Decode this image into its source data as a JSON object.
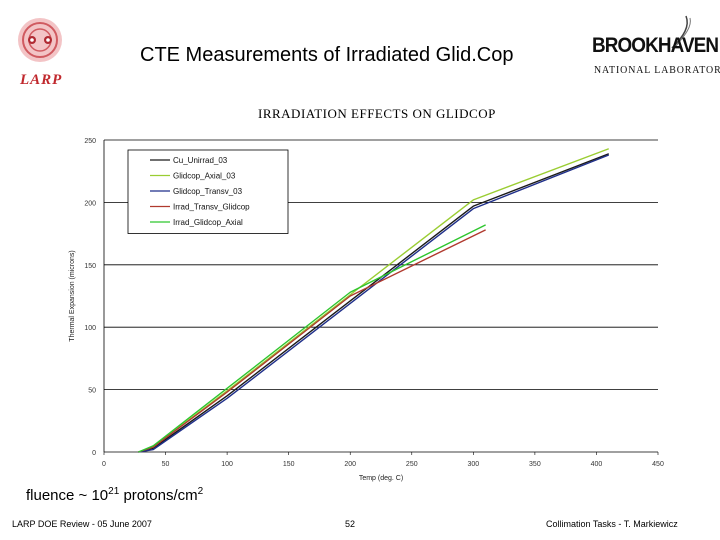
{
  "header": {
    "title": "CTE Measurements of Irradiated Glid.Cop",
    "left_logo_text": "LARP",
    "right_logo_word": "BROOKHAVEN",
    "right_logo_sub": "NATIONAL LABORATORY"
  },
  "note": {
    "text_prefix": "fluence ~ 10",
    "exponent": "21",
    "text_suffix": " protons/cm",
    "units_exponent": "2"
  },
  "footer": {
    "left": "LARP DOE Review - 05 June 2007",
    "center": "52",
    "right": "Collimation Tasks - T. Markiewicz"
  },
  "colors": {
    "larp_red": "#c0282d",
    "Cu_Unirrad_03": "#1a1a1a",
    "Glidcop_Axial_03": "#9acd32",
    "Glidcop_Transv_03": "#1f2f8a",
    "Irrad_Transv_Glidcop": "#b03a2e",
    "Irrad_Glidcop_Axial": "#2ec62e"
  },
  "chart_data": {
    "type": "line",
    "title": "IRRADIATION EFFECTS ON GLIDCOP",
    "xlabel": "Temp (deg. C)",
    "ylabel": "Thermal Expansion (microns)",
    "xlim": [
      0,
      450
    ],
    "ylim": [
      0,
      250
    ],
    "xticks": [
      "0",
      "50",
      "100",
      "150",
      "200",
      "250",
      "300",
      "350",
      "400",
      "450"
    ],
    "yticks": [
      "0",
      "50",
      "100",
      "150",
      "200",
      "250"
    ],
    "grid": "horizontal",
    "legend_position": "top-left",
    "series": [
      {
        "name": "Cu_Unirrad_03",
        "x": [
          28,
          40,
          100,
          200,
          300,
          410
        ],
        "y": [
          0,
          3,
          45,
          121,
          197,
          239
        ]
      },
      {
        "name": "Glidcop_Axial_03",
        "x": [
          28,
          40,
          100,
          200,
          300,
          410
        ],
        "y": [
          0,
          4,
          49,
          126,
          202,
          243
        ]
      },
      {
        "name": "Glidcop_Transv_03",
        "x": [
          28,
          40,
          100,
          200,
          300,
          410
        ],
        "y": [
          0,
          2,
          43,
          119,
          195,
          238
        ]
      },
      {
        "name": "Irrad_Transv_Glidcop",
        "x": [
          28,
          40,
          100,
          200,
          310
        ],
        "y": [
          0,
          4,
          48,
          125,
          178
        ]
      },
      {
        "name": "Irrad_Glidcop_Axial",
        "x": [
          28,
          40,
          100,
          200,
          310
        ],
        "y": [
          0,
          5,
          51,
          128,
          182
        ]
      }
    ]
  }
}
